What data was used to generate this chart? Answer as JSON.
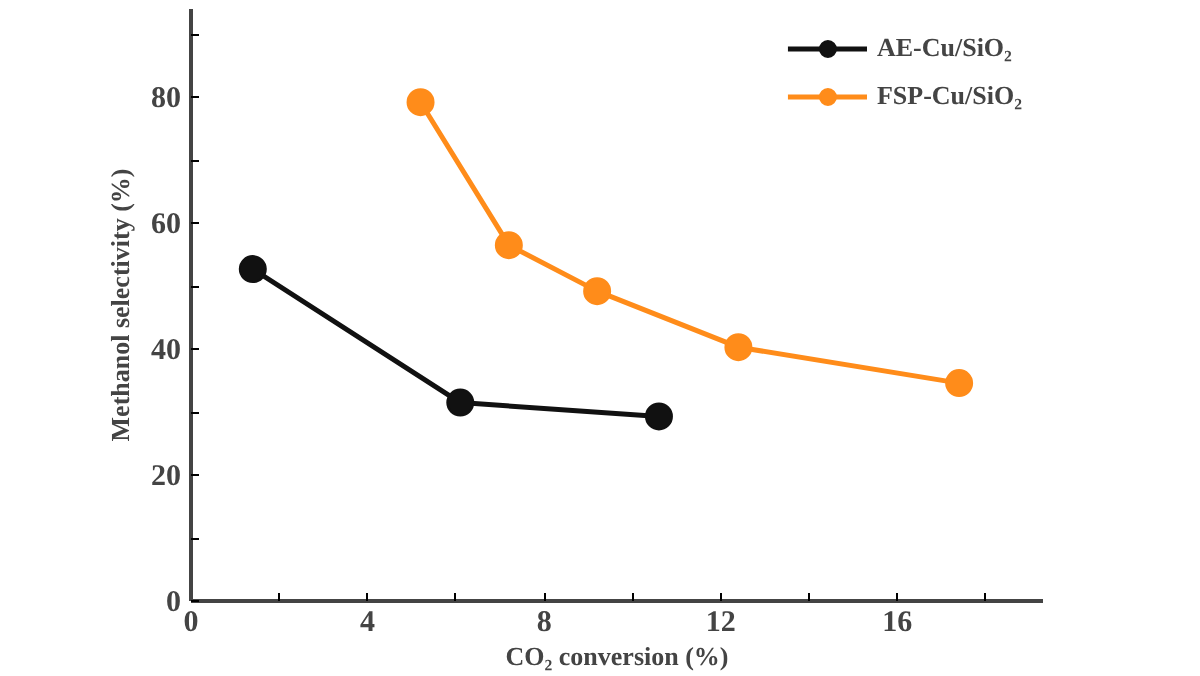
{
  "chart_data": {
    "type": "line",
    "xlabel": "CO₂ conversion (%)",
    "ylabel": "Methanol selectivity (%)",
    "xlim": [
      0,
      19.3
    ],
    "ylim": [
      0,
      94
    ],
    "xticks": [
      0,
      {
        "value": 2,
        "label": null
      },
      4,
      {
        "value": 6,
        "label": null
      },
      8,
      {
        "value": 10,
        "label": null
      },
      12,
      {
        "value": 14,
        "label": null
      },
      16,
      {
        "value": 18,
        "label": null
      }
    ],
    "yticks": [
      0,
      {
        "value": 10,
        "label": null
      },
      20,
      {
        "value": 30,
        "label": null
      },
      40,
      {
        "value": 50,
        "label": null
      },
      60,
      {
        "value": 70,
        "label": null
      },
      80,
      {
        "value": 90,
        "label": null
      }
    ],
    "series": [
      {
        "name": "AE-Cu/SiO₂",
        "color": "#111111",
        "x": [
          1.4,
          6.1,
          10.6
        ],
        "values": [
          52.7,
          31.5,
          29.3
        ]
      },
      {
        "name": "FSP-Cu/SiO₂",
        "color": "#ff8c1a",
        "x": [
          5.2,
          7.2,
          9.2,
          12.4,
          17.4
        ],
        "values": [
          79.2,
          56.5,
          49.2,
          40.3,
          34.6
        ]
      }
    ],
    "marker": "circle",
    "line_style": "solid",
    "legend": "top right",
    "grid": false
  }
}
